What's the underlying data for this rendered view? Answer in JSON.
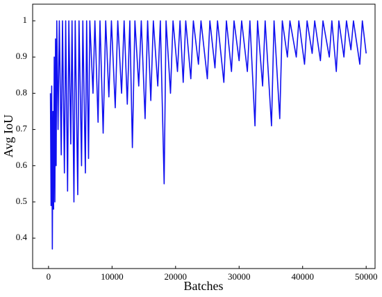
{
  "chart_data": {
    "type": "line",
    "xlabel": "Batches",
    "ylabel": "Avg IoU",
    "xlim": [
      -2500,
      51400
    ],
    "ylim": [
      0.316,
      1.046
    ],
    "xticks": [
      0,
      10000,
      20000,
      30000,
      40000,
      50000
    ],
    "yticks": [
      0.4,
      0.5,
      0.6,
      0.7,
      0.8,
      0.9,
      1
    ],
    "grid": false,
    "series": [
      {
        "name": "Avg IoU",
        "color": "#1010f0",
        "x": [
          300,
          400,
          500,
          600,
          700,
          800,
          900,
          1000,
          1100,
          1200,
          1300,
          1500,
          1700,
          2000,
          2200,
          2500,
          2700,
          3000,
          3200,
          3500,
          3700,
          4000,
          4200,
          4600,
          4800,
          5200,
          5400,
          5800,
          6000,
          6300,
          6500,
          7000,
          7300,
          7800,
          8100,
          8600,
          9000,
          9500,
          9900,
          10500,
          10900,
          11500,
          11900,
          12400,
          12800,
          13200,
          13600,
          14200,
          14600,
          15200,
          15600,
          16100,
          16500,
          17200,
          17600,
          18200,
          18500,
          19200,
          19600,
          20300,
          20700,
          21200,
          21600,
          22400,
          22800,
          23600,
          24000,
          25000,
          25400,
          26200,
          26600,
          27600,
          28000,
          28800,
          29200,
          30000,
          30400,
          31300,
          31700,
          32500,
          32900,
          33700,
          34100,
          35100,
          35500,
          36400,
          36800,
          37600,
          38000,
          39000,
          39400,
          40300,
          40700,
          41500,
          41900,
          42800,
          43200,
          44200,
          44600,
          45300,
          45700,
          46500,
          46900,
          47600,
          48000,
          49000,
          49400,
          50000
        ],
        "values": [
          0.8,
          0.49,
          0.82,
          0.37,
          0.75,
          0.48,
          0.9,
          0.5,
          0.95,
          0.6,
          1,
          0.7,
          1,
          0.63,
          1,
          0.58,
          1,
          0.53,
          1,
          0.66,
          1,
          0.5,
          1,
          0.52,
          1,
          0.6,
          1,
          0.58,
          1,
          0.62,
          1,
          0.8,
          1,
          0.72,
          1,
          0.69,
          1,
          0.79,
          1,
          0.76,
          1,
          0.8,
          1,
          0.77,
          1,
          0.65,
          1,
          0.82,
          1,
          0.73,
          1,
          0.78,
          1,
          0.82,
          1,
          0.55,
          1,
          0.8,
          1,
          0.86,
          1,
          0.83,
          1,
          0.84,
          1,
          0.88,
          1,
          0.84,
          1,
          0.87,
          1,
          0.83,
          1,
          0.86,
          1,
          0.89,
          1,
          0.86,
          1,
          0.71,
          1,
          0.82,
          1,
          0.71,
          1,
          0.73,
          1,
          0.9,
          1,
          0.9,
          1,
          0.88,
          1,
          0.91,
          1,
          0.89,
          1,
          0.9,
          1,
          0.86,
          1,
          0.9,
          1,
          0.92,
          1,
          0.88,
          1,
          0.91
        ]
      }
    ]
  }
}
